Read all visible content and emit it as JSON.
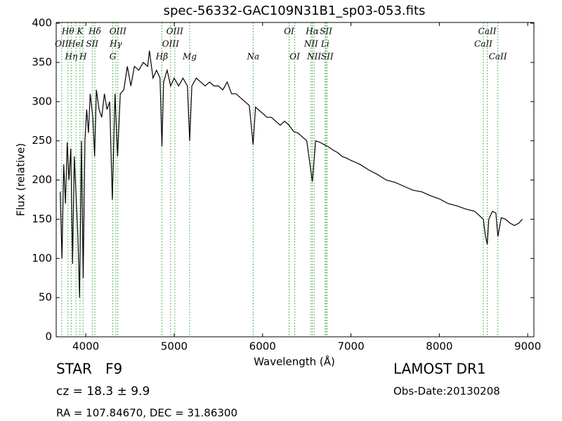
{
  "chart_data": {
    "type": "line",
    "title": "spec-56332-GAC109N31B1_sp03-053.fits",
    "x_label": "Wavelength (Å)",
    "y_label": "Flux (relative)",
    "xlim": [
      3665,
      9070
    ],
    "ylim": [
      0,
      401
    ],
    "xticks": [
      4000,
      5000,
      6000,
      7000,
      8000,
      9000
    ],
    "yticks": [
      0,
      50,
      100,
      150,
      200,
      250,
      300,
      350,
      400
    ],
    "color": "#000000",
    "line_color": "#2ca02c",
    "x": [
      3710,
      3730,
      3750,
      3770,
      3790,
      3810,
      3830,
      3850,
      3870,
      3890,
      3910,
      3930,
      3950,
      3970,
      3990,
      4010,
      4030,
      4050,
      4080,
      4100,
      4120,
      4150,
      4180,
      4210,
      4240,
      4270,
      4300,
      4330,
      4360,
      4390,
      4430,
      4470,
      4510,
      4550,
      4600,
      4650,
      4700,
      4720,
      4760,
      4800,
      4840,
      4861,
      4880,
      4920,
      4960,
      5000,
      5050,
      5100,
      5150,
      5175,
      5200,
      5250,
      5300,
      5350,
      5400,
      5450,
      5500,
      5550,
      5600,
      5650,
      5700,
      5750,
      5800,
      5850,
      5893,
      5920,
      5950,
      6000,
      6050,
      6100,
      6150,
      6200,
      6250,
      6300,
      6350,
      6400,
      6450,
      6500,
      6563,
      6600,
      6650,
      6700,
      6750,
      6800,
      6850,
      6900,
      6950,
      7000,
      7100,
      7200,
      7300,
      7400,
      7500,
      7600,
      7700,
      7800,
      7900,
      8000,
      8100,
      8200,
      8300,
      8400,
      8498,
      8520,
      8542,
      8560,
      8600,
      8640,
      8662,
      8700,
      8750,
      8800,
      8850,
      8900,
      8940
    ],
    "values": [
      185,
      100,
      220,
      170,
      248,
      200,
      240,
      93,
      230,
      180,
      130,
      50,
      250,
      75,
      250,
      290,
      260,
      310,
      280,
      230,
      315,
      290,
      280,
      310,
      290,
      300,
      175,
      310,
      230,
      310,
      315,
      345,
      320,
      345,
      340,
      350,
      345,
      365,
      330,
      340,
      330,
      243,
      325,
      340,
      320,
      330,
      320,
      330,
      320,
      250,
      320,
      330,
      325,
      320,
      325,
      320,
      320,
      315,
      325,
      310,
      310,
      305,
      300,
      295,
      245,
      293,
      290,
      285,
      280,
      280,
      275,
      270,
      275,
      270,
      262,
      260,
      255,
      250,
      198,
      250,
      248,
      245,
      242,
      238,
      235,
      230,
      228,
      225,
      220,
      213,
      207,
      200,
      197,
      192,
      187,
      185,
      180,
      176,
      170,
      167,
      163,
      160,
      150,
      130,
      118,
      150,
      160,
      158,
      128,
      152,
      150,
      145,
      142,
      145,
      150
    ],
    "annotations": [
      {
        "text": "OII",
        "x": 3727
      },
      {
        "text": "Hθ",
        "x": 3798
      },
      {
        "text": "Hη",
        "x": 3835
      },
      {
        "text": "HeI",
        "x": 3889
      },
      {
        "text": "K",
        "x": 3934
      },
      {
        "text": "H",
        "x": 3969
      },
      {
        "text": "SII",
        "x": 4072
      },
      {
        "text": "Hδ",
        "x": 4102
      },
      {
        "text": "G",
        "x": 4305
      },
      {
        "text": "Hγ",
        "x": 4340
      },
      {
        "text": "OIII",
        "x": 4363
      },
      {
        "text": "Hβ",
        "x": 4861
      },
      {
        "text": "OIII",
        "x": 4959
      },
      {
        "text": "OIII",
        "x": 5007
      },
      {
        "text": "Mg",
        "x": 5175
      },
      {
        "text": "Na",
        "x": 5893
      },
      {
        "text": "OI",
        "x": 6300
      },
      {
        "text": "OI",
        "x": 6364
      },
      {
        "text": "NII",
        "x": 6548
      },
      {
        "text": "Hα",
        "x": 6563
      },
      {
        "text": "NII",
        "x": 6583
      },
      {
        "text": "Li",
        "x": 6708
      },
      {
        "text": "SII",
        "x": 6717
      },
      {
        "text": "SII",
        "x": 6731
      },
      {
        "text": "CaII",
        "x": 8498
      },
      {
        "text": "CaII",
        "x": 8542
      },
      {
        "text": "CaII",
        "x": 8662
      }
    ],
    "footer": {
      "class": "STAR   F9",
      "cz": "cz = 18.3 ± 9.9",
      "coords": "RA = 107.84670, DEC = 31.86300",
      "survey": "LAMOST DR1",
      "date": "Obs-Date:20130208"
    }
  }
}
